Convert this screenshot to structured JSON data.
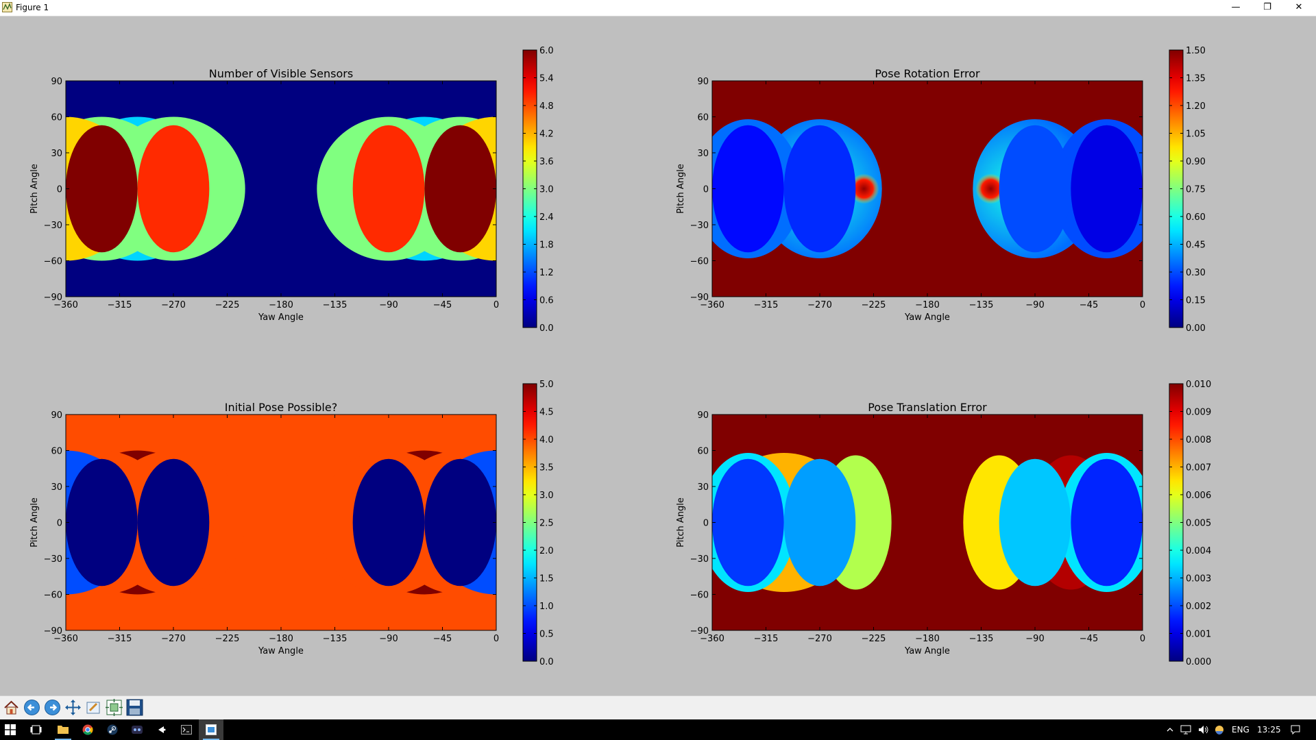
{
  "window": {
    "title": "Figure 1",
    "minimize_glyph": "—",
    "restore_glyph": "❐",
    "close_glyph": "✕"
  },
  "chart_data": [
    {
      "type": "heatmap",
      "title": "Number of Visible Sensors",
      "xlabel": "Yaw Angle",
      "ylabel": "Pitch Angle",
      "xlim": [
        -360,
        0
      ],
      "ylim": [
        -90,
        90
      ],
      "x_ticks": [
        "−360",
        "−315",
        "−270",
        "−225",
        "−180",
        "−135",
        "−90",
        "−45",
        "0"
      ],
      "y_ticks": [
        "90",
        "60",
        "30",
        "0",
        "−30",
        "−60",
        "−90"
      ],
      "colorbar": {
        "min": 0,
        "max": 6,
        "colormap": "jet",
        "ticks": [
          "6.0",
          "5.4",
          "4.8",
          "4.2",
          "3.6",
          "3.0",
          "2.4",
          "1.8",
          "1.2",
          "0.6",
          "0.0"
        ]
      },
      "background_value": 0,
      "regions": [
        {
          "shape": "ellipse",
          "cx": -300,
          "cy": 0,
          "rx": 60,
          "ry": 60,
          "value": 2
        },
        {
          "shape": "ellipse",
          "cx": -60,
          "cy": 0,
          "rx": 60,
          "ry": 60,
          "value": 2
        },
        {
          "shape": "ellipse",
          "cx": -330,
          "cy": 0,
          "rx": 60,
          "ry": 60,
          "value": 3
        },
        {
          "shape": "ellipse",
          "cx": -270,
          "cy": 0,
          "rx": 60,
          "ry": 60,
          "value": 3
        },
        {
          "shape": "ellipse",
          "cx": -90,
          "cy": 0,
          "rx": 60,
          "ry": 60,
          "value": 3
        },
        {
          "shape": "ellipse",
          "cx": -30,
          "cy": 0,
          "rx": 60,
          "ry": 60,
          "value": 3
        },
        {
          "shape": "ellipse",
          "cx": -360,
          "cy": 0,
          "rx": 60,
          "ry": 60,
          "value": 4
        },
        {
          "shape": "ellipse",
          "cx": 0,
          "cy": 0,
          "rx": 60,
          "ry": 60,
          "value": 4
        },
        {
          "shape": "ellipse",
          "cx": -270,
          "cy": 0,
          "rx": 30,
          "ry": 53,
          "value": 5
        },
        {
          "shape": "ellipse",
          "cx": -90,
          "cy": 0,
          "rx": 30,
          "ry": 53,
          "value": 5
        },
        {
          "shape": "ellipse",
          "cx": -330,
          "cy": 0,
          "rx": 30,
          "ry": 53,
          "value": 6
        },
        {
          "shape": "ellipse",
          "cx": -30,
          "cy": 0,
          "rx": 30,
          "ry": 53,
          "value": 6
        }
      ]
    },
    {
      "type": "heatmap",
      "title": "Pose Rotation Error",
      "xlabel": "Yaw Angle",
      "ylabel": "Pitch Angle",
      "xlim": [
        -360,
        0
      ],
      "ylim": [
        -90,
        90
      ],
      "x_ticks": [
        "−360",
        "−315",
        "−270",
        "−225",
        "−180",
        "−135",
        "−90",
        "−45",
        "0"
      ],
      "y_ticks": [
        "90",
        "60",
        "30",
        "0",
        "−30",
        "−60",
        "−90"
      ],
      "colorbar": {
        "min": 0,
        "max": 1.5,
        "colormap": "jet",
        "ticks": [
          "1.50",
          "1.35",
          "1.20",
          "1.05",
          "0.90",
          "0.75",
          "0.60",
          "0.45",
          "0.30",
          "0.15",
          "0.00"
        ]
      },
      "background_value": 1.5,
      "regions": [
        {
          "shape": "ellipse",
          "cx": -270,
          "cy": 0,
          "rx": 52,
          "ry": 58,
          "value": 0.6,
          "radial_center": -270,
          "radial_edge": 0.35,
          "hot_spot": -233
        },
        {
          "shape": "ellipse",
          "cx": -90,
          "cy": 0,
          "rx": 52,
          "ry": 58,
          "value": 0.6,
          "radial_center": -105,
          "radial_edge": 0.35,
          "hot_spot": -127
        },
        {
          "shape": "ellipse",
          "cx": -330,
          "cy": 0,
          "rx": 45,
          "ry": 58,
          "value": 0.35
        },
        {
          "shape": "ellipse",
          "cx": -30,
          "cy": 0,
          "rx": 45,
          "ry": 58,
          "value": 0.3
        },
        {
          "shape": "ellipse",
          "cx": -270,
          "cy": 0,
          "rx": 30,
          "ry": 53,
          "value": 0.25
        },
        {
          "shape": "ellipse",
          "cx": -90,
          "cy": 0,
          "rx": 30,
          "ry": 53,
          "value": 0.3
        },
        {
          "shape": "ellipse",
          "cx": -330,
          "cy": 0,
          "rx": 30,
          "ry": 53,
          "value": 0.2
        },
        {
          "shape": "ellipse",
          "cx": -30,
          "cy": 0,
          "rx": 30,
          "ry": 53,
          "value": 0.15
        }
      ]
    },
    {
      "type": "heatmap",
      "title": "Initial Pose Possible?",
      "xlabel": "Yaw Angle",
      "ylabel": "Pitch Angle",
      "xlim": [
        -360,
        0
      ],
      "ylim": [
        -90,
        90
      ],
      "x_ticks": [
        "−360",
        "−315",
        "−270",
        "−225",
        "−180",
        "−135",
        "−90",
        "−45",
        "0"
      ],
      "y_ticks": [
        "90",
        "60",
        "30",
        "0",
        "−30",
        "−60",
        "−90"
      ],
      "colorbar": {
        "min": 0,
        "max": 5,
        "colormap": "jet",
        "ticks": [
          "5.0",
          "4.5",
          "4.0",
          "3.5",
          "3.0",
          "2.5",
          "2.0",
          "1.5",
          "1.0",
          "0.5",
          "0.0"
        ]
      },
      "background_value": 4,
      "regions": [
        {
          "shape": "ellipse",
          "cx": -300,
          "cy": 0,
          "rx": 60,
          "ry": 60,
          "value": 5
        },
        {
          "shape": "ellipse",
          "cx": -60,
          "cy": 0,
          "rx": 60,
          "ry": 60,
          "value": 5
        },
        {
          "shape": "ellipse",
          "cx": -330,
          "cy": 0,
          "rx": 60,
          "ry": 60,
          "value": 4
        },
        {
          "shape": "ellipse",
          "cx": -270,
          "cy": 0,
          "rx": 60,
          "ry": 60,
          "value": 4
        },
        {
          "shape": "ellipse",
          "cx": -90,
          "cy": 0,
          "rx": 60,
          "ry": 60,
          "value": 4
        },
        {
          "shape": "ellipse",
          "cx": -30,
          "cy": 0,
          "rx": 60,
          "ry": 60,
          "value": 4
        },
        {
          "shape": "ellipse",
          "cx": -360,
          "cy": 0,
          "rx": 60,
          "ry": 60,
          "value": 1
        },
        {
          "shape": "ellipse",
          "cx": 0,
          "cy": 0,
          "rx": 60,
          "ry": 60,
          "value": 1
        },
        {
          "shape": "ellipse",
          "cx": -270,
          "cy": 0,
          "rx": 30,
          "ry": 53,
          "value": 0
        },
        {
          "shape": "ellipse",
          "cx": -90,
          "cy": 0,
          "rx": 30,
          "ry": 53,
          "value": 0
        },
        {
          "shape": "ellipse",
          "cx": -330,
          "cy": 0,
          "rx": 30,
          "ry": 53,
          "value": 0
        },
        {
          "shape": "ellipse",
          "cx": -30,
          "cy": 0,
          "rx": 30,
          "ry": 53,
          "value": 0
        }
      ]
    },
    {
      "type": "heatmap",
      "title": "Pose Translation Error",
      "xlabel": "Yaw Angle",
      "ylabel": "Pitch Angle",
      "xlim": [
        -360,
        0
      ],
      "ylim": [
        -90,
        90
      ],
      "x_ticks": [
        "−360",
        "−315",
        "−270",
        "−225",
        "−180",
        "−135",
        "−90",
        "−45",
        "0"
      ],
      "y_ticks": [
        "90",
        "60",
        "30",
        "0",
        "−30",
        "−60",
        "−90"
      ],
      "colorbar": {
        "min": 0,
        "max": 0.01,
        "colormap": "jet",
        "ticks": [
          "0.010",
          "0.009",
          "0.008",
          "0.007",
          "0.006",
          "0.005",
          "0.004",
          "0.003",
          "0.002",
          "0.001",
          "0.000"
        ]
      },
      "background_value": 0.01,
      "regions": [
        {
          "shape": "ellipse",
          "cx": -300,
          "cy": 0,
          "rx": 60,
          "ry": 58,
          "value": 0.007
        },
        {
          "shape": "ellipse",
          "cx": -240,
          "cy": 0,
          "rx": 30,
          "ry": 56,
          "value": 0.0055
        },
        {
          "shape": "ellipse",
          "cx": -120,
          "cy": 0,
          "rx": 30,
          "ry": 56,
          "value": 0.0065
        },
        {
          "shape": "ellipse",
          "cx": -60,
          "cy": 0,
          "rx": 35,
          "ry": 56,
          "value": 0.0095
        },
        {
          "shape": "ellipse",
          "cx": -330,
          "cy": 0,
          "rx": 40,
          "ry": 58,
          "value": 0.0035
        },
        {
          "shape": "ellipse",
          "cx": -30,
          "cy": 0,
          "rx": 40,
          "ry": 58,
          "value": 0.0035
        },
        {
          "shape": "ellipse",
          "cx": -270,
          "cy": 0,
          "rx": 30,
          "ry": 53,
          "value": 0.0028
        },
        {
          "shape": "ellipse",
          "cx": -90,
          "cy": 0,
          "rx": 30,
          "ry": 53,
          "value": 0.0032
        },
        {
          "shape": "ellipse",
          "cx": -330,
          "cy": 0,
          "rx": 30,
          "ry": 53,
          "value": 0.0018
        },
        {
          "shape": "ellipse",
          "cx": -30,
          "cy": 0,
          "rx": 30,
          "ry": 53,
          "value": 0.0016
        }
      ]
    }
  ],
  "toolbar": {
    "buttons": [
      {
        "name": "home-button",
        "icon": "home-icon"
      },
      {
        "name": "back-button",
        "icon": "arrow-left-icon"
      },
      {
        "name": "forward-button",
        "icon": "arrow-right-icon"
      },
      {
        "name": "pan-button",
        "icon": "move-icon"
      },
      {
        "name": "zoom-button",
        "icon": "zoom-rect-icon"
      },
      {
        "name": "subplots-button",
        "icon": "subplots-icon"
      },
      {
        "name": "save-button",
        "icon": "floppy-disk-icon"
      }
    ]
  },
  "taskbar": {
    "language": "ENG",
    "clock": "13:25",
    "colors": {
      "background": "#000000",
      "accent": "#76b9ed"
    }
  }
}
